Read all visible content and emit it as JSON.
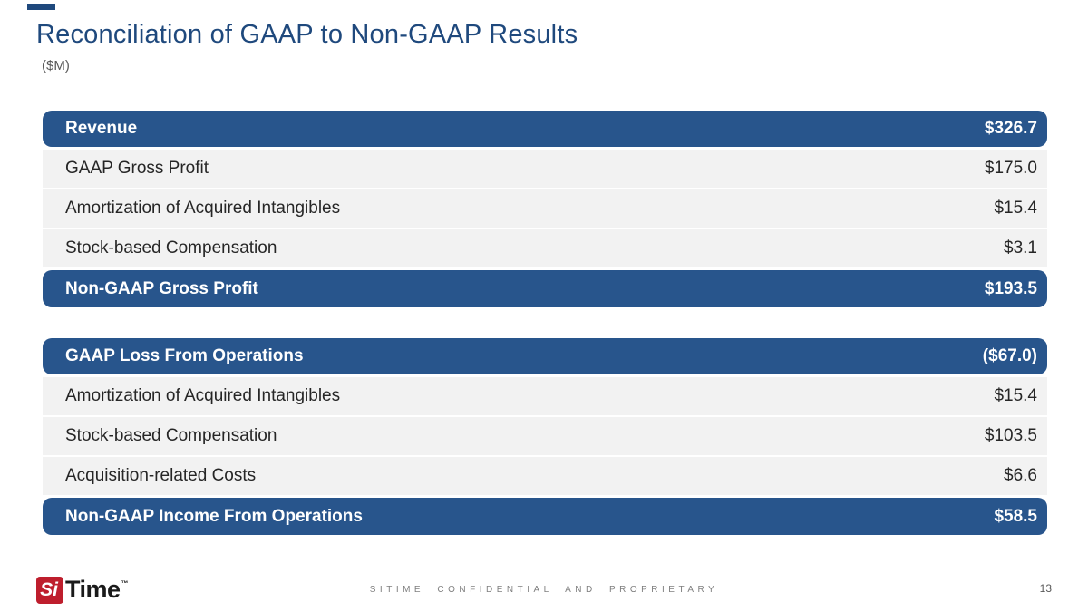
{
  "slide": {
    "title": "Reconciliation of GAAP to Non-GAAP Results",
    "subtitle": "($M)",
    "units_note": "$M"
  },
  "colors": {
    "title_blue": "#1f497d",
    "row_header_blue": "#28558c",
    "row_gray": "#f2f2f2",
    "logo_red": "#be1e2d",
    "footer_gray": "#7f7f7f"
  },
  "tables": [
    {
      "name": "gross-profit-reconciliation",
      "rows": [
        {
          "label": "Revenue",
          "value": "$326.7",
          "emphasis": true
        },
        {
          "label": "GAAP Gross Profit",
          "value": "$175.0",
          "emphasis": false
        },
        {
          "label": "Amortization of Acquired Intangibles",
          "value": "$15.4",
          "emphasis": false
        },
        {
          "label": "Stock-based Compensation",
          "value": "$3.1",
          "emphasis": false
        },
        {
          "label": "Non-GAAP Gross Profit",
          "value": "$193.5",
          "emphasis": true
        }
      ]
    },
    {
      "name": "operations-reconciliation",
      "rows": [
        {
          "label": "GAAP Loss From Operations",
          "value": "($67.0)",
          "emphasis": true
        },
        {
          "label": "Amortization of Acquired Intangibles",
          "value": "$15.4",
          "emphasis": false
        },
        {
          "label": "Stock-based Compensation",
          "value": "$103.5",
          "emphasis": false
        },
        {
          "label": "Acquisition-related Costs",
          "value": "$6.6",
          "emphasis": false
        },
        {
          "label": "Non-GAAP Income From Operations",
          "value": "$58.5",
          "emphasis": true
        }
      ]
    }
  ],
  "footer": {
    "logo_si": "Si",
    "logo_time": "Time",
    "logo_trademark": "™",
    "confidential_text": "SITIME CONFIDENTIAL AND PROPRIETARY",
    "page_number": "13"
  }
}
